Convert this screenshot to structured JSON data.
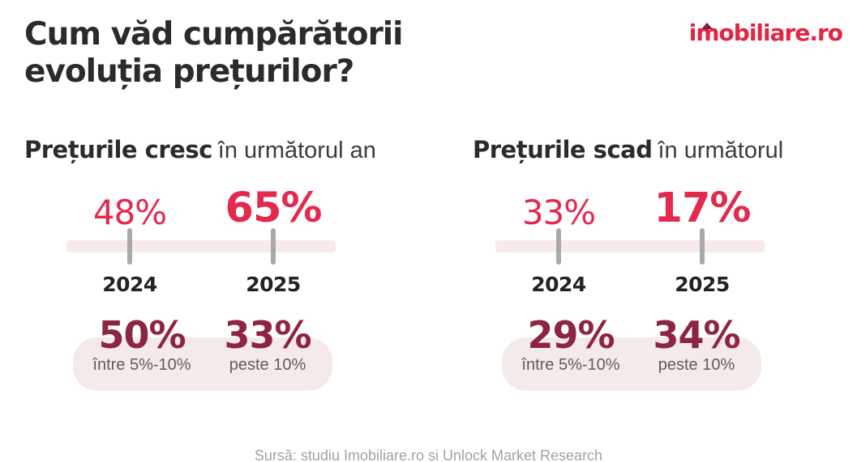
{
  "header": {
    "title_line1": "Cum văd cumpărătorii",
    "title_line2": "evoluția prețurilor?",
    "logo": {
      "start": "i",
      "m": "m",
      "end": "obiliare.ro",
      "full": "imobiliare.ro"
    }
  },
  "panels": [
    {
      "headline_bold": "Prețurile cresc",
      "headline_rest": "în următorul an",
      "years": [
        "2024",
        "2025"
      ],
      "values": [
        "48%",
        "65%"
      ],
      "breakdown": [
        {
          "value": "50%",
          "label": "între 5%-10%"
        },
        {
          "value": "33%",
          "label": "peste 10%"
        }
      ]
    },
    {
      "headline_bold": "Prețurile scad",
      "headline_rest": "în următorul",
      "years": [
        "2024",
        "2025"
      ],
      "values": [
        "33%",
        "17%"
      ],
      "breakdown": [
        {
          "value": "29%",
          "label": "între 5%-10%"
        },
        {
          "value": "34%",
          "label": "peste 10%"
        }
      ]
    }
  ],
  "footer": {
    "source": "Sursă: studiu Imobiliare.ro și Unlock Market Research"
  },
  "colors": {
    "crimson": "#E32A4E",
    "maroon": "#8E2540",
    "dark_text": "#2B2B2B",
    "timeline_pink": "#F6EAEB",
    "pill_pink": "#F4EAE9",
    "tick_grey": "#A9A9A9",
    "label_grey": "#5D5D5D",
    "source_grey": "#A2A2A2"
  },
  "chart_data": [
    {
      "type": "bar",
      "title": "Prețurile cresc în următorul an",
      "categories": [
        "2024",
        "2025"
      ],
      "values": [
        48,
        65
      ],
      "unit": "%",
      "breakdown": [
        {
          "label": "între 5%-10%",
          "value": 50
        },
        {
          "label": "peste 10%",
          "value": 33
        }
      ]
    },
    {
      "type": "bar",
      "title": "Prețurile scad în următorul",
      "categories": [
        "2024",
        "2025"
      ],
      "values": [
        33,
        17
      ],
      "unit": "%",
      "breakdown": [
        {
          "label": "între 5%-10%",
          "value": 29
        },
        {
          "label": "peste 10%",
          "value": 34
        }
      ]
    }
  ]
}
